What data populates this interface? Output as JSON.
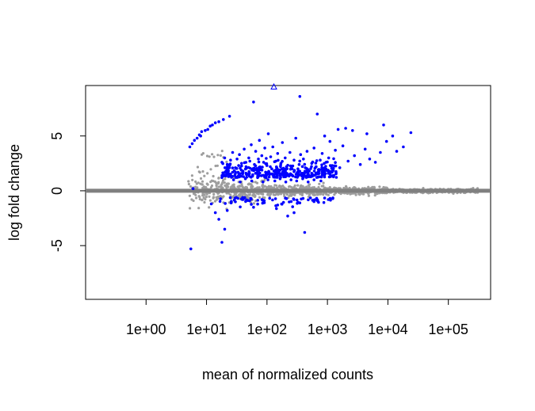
{
  "chart_data": {
    "type": "scatter",
    "title": "",
    "xlabel": "mean of normalized counts",
    "ylabel": "log fold change",
    "x_scale": "log10",
    "x_ticks": [
      "1e+00",
      "1e+01",
      "1e+02",
      "1e+03",
      "1e+04",
      "1e+05"
    ],
    "x_tick_values": [
      1,
      10,
      100,
      1000,
      10000,
      100000
    ],
    "y_ticks": [
      "-5",
      "0",
      "5"
    ],
    "y_tick_values": [
      -5,
      0,
      5
    ],
    "xlim": [
      0.1,
      500000
    ],
    "ylim": [
      -9.9,
      9.6
    ],
    "grid": false,
    "legend": "none",
    "colors": {
      "non_significant": "#9e9e9e",
      "significant": "#0000ff",
      "baseline": "#808080"
    },
    "reference_line": {
      "y": 0,
      "color": "#808080"
    },
    "series": [
      {
        "role": "significant",
        "points": [
          [
            5.3,
            4.0
          ],
          [
            5.8,
            4.3
          ],
          [
            6.3,
            4.6
          ],
          [
            7.0,
            4.8
          ],
          [
            7.6,
            5.1
          ],
          [
            8.0,
            5.0
          ],
          [
            8.3,
            5.4
          ],
          [
            9.5,
            5.5
          ],
          [
            10.5,
            5.6
          ],
          [
            11.5,
            5.9
          ],
          [
            12.5,
            6.0
          ],
          [
            14.0,
            6.2
          ],
          [
            16.0,
            6.3
          ],
          [
            19.0,
            6.5
          ],
          [
            24.0,
            6.8
          ],
          [
            60.0,
            8.1
          ],
          [
            350.0,
            8.6
          ],
          [
            680.0,
            7.0
          ],
          [
            8500.0,
            6.0
          ],
          [
            24000.0,
            5.3
          ],
          [
            12000.0,
            5.0
          ],
          [
            2000.0,
            5.7
          ],
          [
            1500.0,
            5.6
          ],
          [
            2600.0,
            5.5
          ],
          [
            4500.0,
            5.2
          ],
          [
            900.0,
            5.0
          ],
          [
            1100.0,
            4.5
          ],
          [
            18.0,
            2.6
          ],
          [
            20.0,
            3.0
          ],
          [
            22.0,
            2.4
          ],
          [
            25.0,
            2.8
          ],
          [
            27.0,
            3.5
          ],
          [
            30.0,
            2.1
          ],
          [
            32.0,
            2.9
          ],
          [
            35.0,
            3.3
          ],
          [
            38.0,
            2.5
          ],
          [
            40.0,
            1.8
          ],
          [
            42.0,
            3.8
          ],
          [
            45.0,
            2.2
          ],
          [
            48.0,
            1.5
          ],
          [
            50.0,
            3.0
          ],
          [
            52.0,
            2.7
          ],
          [
            55.0,
            4.2
          ],
          [
            58.0,
            1.9
          ],
          [
            62.0,
            2.4
          ],
          [
            65.0,
            3.6
          ],
          [
            68.0,
            1.6
          ],
          [
            72.0,
            2.9
          ],
          [
            75.0,
            4.6
          ],
          [
            78.0,
            2.0
          ],
          [
            82.0,
            3.2
          ],
          [
            85.0,
            1.4
          ],
          [
            88.0,
            2.6
          ],
          [
            92.0,
            3.9
          ],
          [
            95.0,
            1.7
          ],
          [
            100.0,
            2.3
          ],
          [
            105.0,
            5.2
          ],
          [
            110.0,
            1.5
          ],
          [
            115.0,
            3.1
          ],
          [
            120.0,
            2.0
          ],
          [
            125.0,
            4.0
          ],
          [
            130.0,
            1.8
          ],
          [
            140.0,
            2.7
          ],
          [
            150.0,
            3.4
          ],
          [
            160.0,
            1.6
          ],
          [
            170.0,
            2.5
          ],
          [
            180.0,
            4.4
          ],
          [
            190.0,
            1.9
          ],
          [
            200.0,
            3.0
          ],
          [
            210.0,
            2.2
          ],
          [
            220.0,
            1.5
          ],
          [
            240.0,
            3.5
          ],
          [
            260.0,
            2.0
          ],
          [
            280.0,
            2.8
          ],
          [
            300.0,
            4.8
          ],
          [
            320.0,
            1.7
          ],
          [
            340.0,
            2.4
          ],
          [
            360.0,
            3.3
          ],
          [
            380.0,
            1.6
          ],
          [
            400.0,
            2.9
          ],
          [
            430.0,
            2.1
          ],
          [
            460.0,
            3.6
          ],
          [
            500.0,
            1.8
          ],
          [
            550.0,
            2.5
          ],
          [
            600.0,
            3.9
          ],
          [
            650.0,
            2.2
          ],
          [
            700.0,
            1.7
          ],
          [
            760.0,
            2.8
          ],
          [
            820.0,
            3.4
          ],
          [
            880.0,
            2.0
          ],
          [
            950.0,
            2.6
          ],
          [
            1050.0,
            3.0
          ],
          [
            1200.0,
            2.3
          ],
          [
            1350.0,
            3.7
          ],
          [
            1600.0,
            2.1
          ],
          [
            1800.0,
            4.1
          ],
          [
            2200.0,
            2.7
          ],
          [
            2800.0,
            3.2
          ],
          [
            3500.0,
            2.4
          ],
          [
            4200.0,
            3.8
          ],
          [
            5000.0,
            2.9
          ],
          [
            6200.0,
            2.6
          ],
          [
            7500.0,
            3.5
          ],
          [
            9500.0,
            4.5
          ],
          [
            14000.0,
            3.6
          ],
          [
            18000.0,
            4.0
          ],
          [
            28.0,
            1.0
          ],
          [
            36.0,
            0.8
          ],
          [
            44.0,
            1.1
          ],
          [
            56.0,
            0.9
          ],
          [
            70.0,
            1.2
          ],
          [
            86.0,
            0.8
          ],
          [
            104.0,
            1.0
          ],
          [
            135.0,
            0.9
          ],
          [
            165.0,
            1.1
          ],
          [
            205.0,
            0.8
          ],
          [
            250.0,
            1.0
          ],
          [
            310.0,
            0.9
          ],
          [
            390.0,
            1.1
          ],
          [
            480.0,
            0.8
          ],
          [
            600.0,
            1.0
          ],
          [
            780.0,
            0.9
          ],
          [
            6.0,
            0.2
          ],
          [
            12.0,
            -1.2
          ],
          [
            14.0,
            -2.0
          ],
          [
            16.0,
            -2.6
          ],
          [
            18.0,
            -4.7
          ],
          [
            22.0,
            -1.8
          ],
          [
            30.0,
            -1.0
          ],
          [
            40.0,
            -0.8
          ],
          [
            60.0,
            -1.5
          ],
          [
            90.0,
            -0.9
          ],
          [
            150.0,
            -1.3
          ],
          [
            220.0,
            -2.3
          ],
          [
            280.0,
            -2.0
          ],
          [
            350.0,
            -1.1
          ],
          [
            420.0,
            -3.8
          ],
          [
            5.5,
            -5.3
          ],
          [
            20.0,
            -3.5
          ]
        ],
        "special_point": {
          "x": 130.0,
          "y": 9.6,
          "shape": "open-triangle"
        }
      }
    ]
  }
}
